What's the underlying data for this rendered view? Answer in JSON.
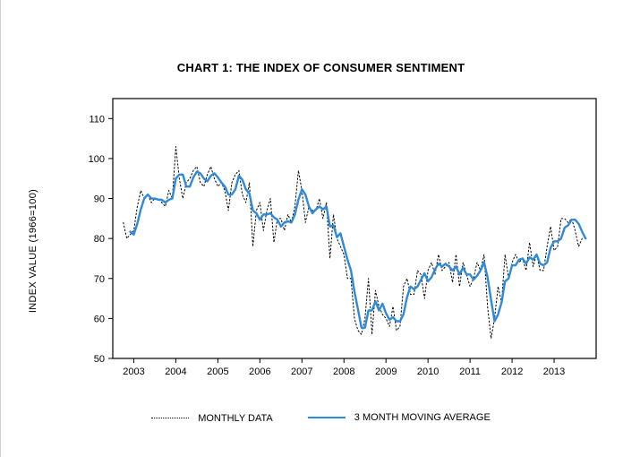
{
  "title": "CHART 1: THE INDEX OF CONSUMER SENTIMENT",
  "ylabel": "INDEX VALUE (1966=100)",
  "legend": {
    "monthly": "MONTHLY DATA",
    "avg": "3 MONTH MOVING AVERAGE"
  },
  "chart": {
    "type": "line",
    "background_color": "#ffffff",
    "border_color": "#000000",
    "border_width": 1.2,
    "yaxis": {
      "min": 50,
      "max": 115,
      "ticks": [
        50,
        60,
        70,
        80,
        90,
        100,
        110
      ],
      "tick_fontsize": 11,
      "tick_color": "#000000"
    },
    "xaxis": {
      "min": 2002.5,
      "max": 2014.0,
      "ticks": [
        2003,
        2004,
        2005,
        2006,
        2007,
        2008,
        2009,
        2010,
        2011,
        2012,
        2013
      ],
      "tick_fontsize": 11,
      "tick_color": "#000000"
    },
    "series": [
      {
        "name": "monthly",
        "color": "#000000",
        "line_width": 1.0,
        "dash": "1.5,2.5",
        "x_start": 2002.75,
        "x_step": 0.0833333,
        "y": [
          84,
          80,
          81,
          82,
          88,
          92,
          90,
          91,
          89,
          90,
          90,
          89,
          88,
          92,
          90,
          103,
          95,
          90,
          94,
          95,
          97,
          98,
          94,
          93,
          96,
          98,
          95,
          93,
          94,
          92,
          87,
          94,
          96,
          97,
          91,
          89,
          94,
          78,
          87,
          89,
          82,
          87,
          90,
          79,
          85,
          85,
          82,
          86,
          84,
          88,
          97,
          92,
          84,
          88,
          87,
          87,
          90,
          85,
          89,
          75,
          86,
          80,
          78,
          76,
          70,
          70,
          60,
          57,
          56,
          60,
          70,
          56,
          67,
          63,
          61,
          60,
          58,
          63,
          57,
          58,
          68,
          70,
          66,
          66,
          72,
          71,
          65,
          72,
          74,
          71,
          76,
          72,
          73,
          74,
          69,
          76,
          68,
          74,
          71,
          68,
          70,
          74,
          72,
          76,
          63,
          55,
          60,
          68,
          64,
          76,
          70,
          74,
          76,
          74,
          75,
          72,
          79,
          73,
          76,
          72,
          72,
          78,
          83,
          77,
          78,
          85,
          85,
          84,
          85,
          82,
          78,
          80
        ]
      },
      {
        "name": "moving_avg_3m",
        "color": "#2f8ad8",
        "line_width": 2.4,
        "dash": null,
        "x_start": 2002.9167,
        "x_step": 0.0833333,
        "y": [
          81.7,
          81.0,
          83.7,
          87.3,
          90.0,
          91.0,
          90.0,
          90.0,
          89.7,
          89.7,
          89.0,
          89.7,
          90.0,
          95.0,
          96.0,
          96.0,
          93.0,
          93.0,
          95.3,
          96.7,
          96.3,
          95.0,
          94.3,
          95.7,
          96.3,
          95.3,
          94.0,
          93.0,
          91.0,
          91.0,
          92.3,
          95.7,
          94.7,
          92.3,
          91.3,
          87.0,
          86.3,
          84.7,
          86.0,
          86.0,
          86.3,
          85.3,
          84.7,
          83.0,
          84.0,
          84.3,
          84.0,
          86.0,
          89.7,
          92.3,
          91.0,
          88.0,
          86.3,
          87.3,
          88.0,
          87.3,
          88.0,
          83.0,
          83.3,
          80.3,
          81.3,
          78.0,
          74.7,
          72.0,
          66.7,
          62.3,
          57.7,
          57.7,
          62.0,
          62.0,
          64.3,
          62.0,
          63.7,
          61.3,
          59.7,
          60.3,
          59.3,
          59.3,
          61.0,
          65.3,
          68.0,
          67.3,
          68.0,
          69.7,
          71.3,
          69.3,
          70.3,
          72.3,
          73.7,
          73.0,
          73.7,
          73.0,
          72.0,
          73.0,
          71.0,
          72.7,
          71.0,
          71.0,
          69.7,
          70.7,
          72.0,
          74.0,
          70.3,
          64.7,
          59.3,
          61.0,
          64.0,
          69.3,
          70.0,
          73.3,
          73.3,
          74.7,
          75.0,
          73.7,
          75.3,
          74.7,
          76.0,
          73.7,
          73.3,
          74.0,
          77.7,
          79.3,
          79.3,
          80.0,
          82.7,
          83.3,
          84.7,
          84.7,
          83.7,
          81.7,
          80.0
        ]
      }
    ]
  }
}
